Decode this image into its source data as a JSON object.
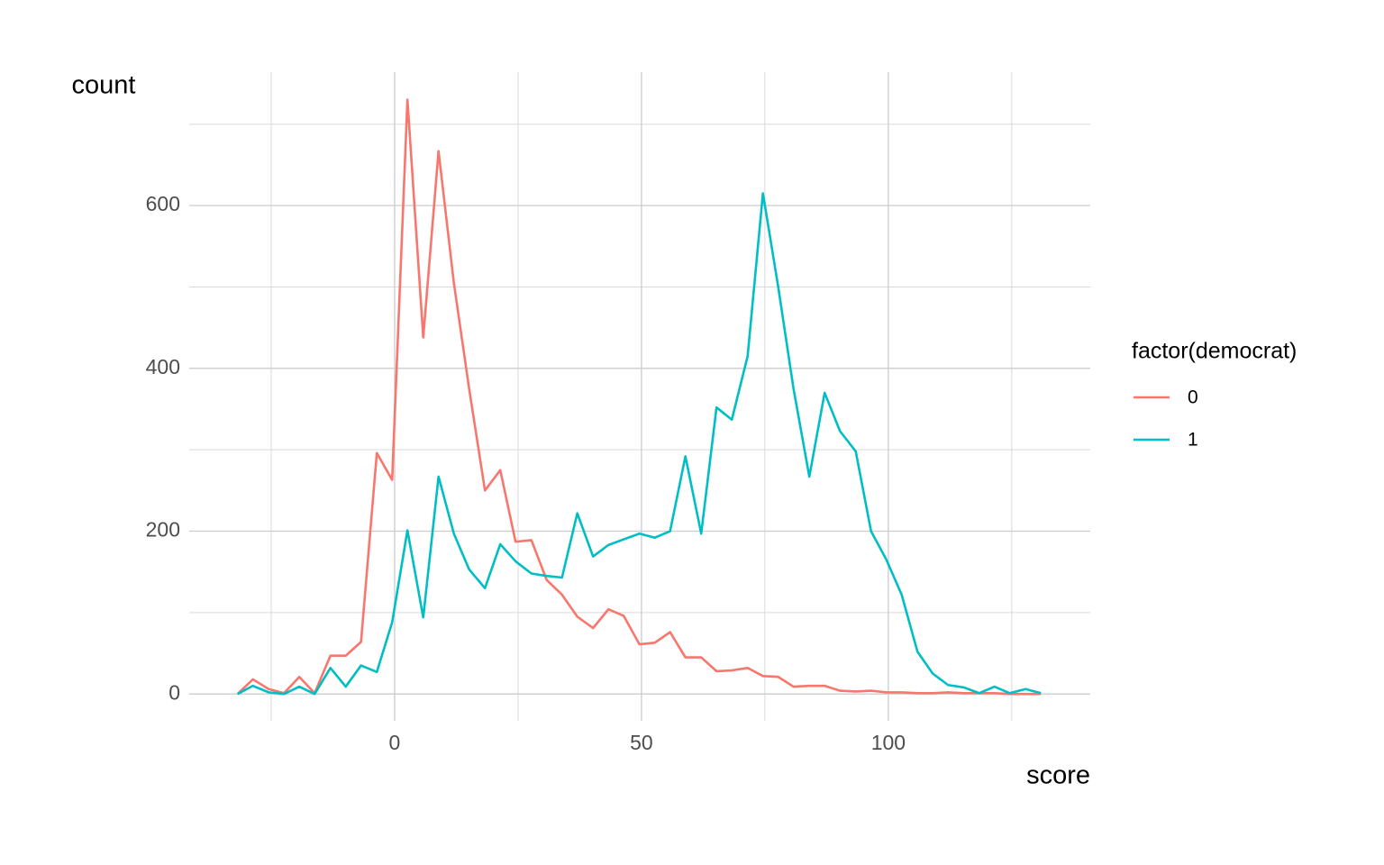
{
  "chart_data": {
    "type": "line",
    "x_label": "score",
    "y_label": "count",
    "legend_title": "factor(democrat)",
    "legend_position": "right",
    "grid": true,
    "xlim": [
      -41.6,
      140.9
    ],
    "ylim": [
      -33,
      764
    ],
    "xticks": [
      0,
      50,
      100
    ],
    "yticks": [
      0,
      200,
      400,
      600
    ],
    "x_minor_grid": [
      -25,
      25,
      75,
      125
    ],
    "y_minor_grid": [
      100,
      300,
      500,
      700
    ],
    "x": [
      -31.8,
      -28.7,
      -25.5,
      -22.4,
      -19.3,
      -16.2,
      -13.0,
      -9.9,
      -6.8,
      -3.6,
      -0.5,
      2.6,
      5.8,
      8.9,
      12.0,
      15.1,
      18.3,
      21.4,
      24.5,
      27.7,
      30.8,
      33.9,
      37.0,
      40.2,
      43.3,
      46.4,
      49.6,
      52.7,
      55.8,
      58.9,
      62.1,
      65.2,
      68.3,
      71.5,
      74.6,
      77.7,
      80.8,
      84.0,
      87.1,
      90.2,
      93.4,
      96.5,
      99.6,
      102.7,
      105.9,
      109.0,
      112.1,
      115.3,
      118.4,
      121.5,
      124.6,
      127.8,
      130.9
    ],
    "series": [
      {
        "name": "0",
        "color": "#F8766D",
        "values": [
          0,
          18,
          6,
          1,
          21,
          1,
          47,
          47,
          64,
          296,
          263,
          730,
          438,
          667,
          505,
          375,
          250,
          275,
          187,
          189,
          140,
          122,
          95,
          81,
          104,
          96,
          61,
          63,
          76,
          45,
          45,
          28,
          29,
          32,
          22,
          21,
          9,
          10,
          10,
          4,
          3,
          4,
          2,
          2,
          1,
          1,
          2,
          1,
          1,
          1,
          0,
          0,
          0
        ]
      },
      {
        "name": "1",
        "color": "#00BFC4",
        "values": [
          0,
          10,
          2,
          0,
          9,
          0,
          32,
          9,
          35,
          27,
          88,
          201,
          94,
          267,
          197,
          153,
          130,
          184,
          163,
          148,
          145,
          143,
          222,
          169,
          183,
          190,
          197,
          192,
          200,
          292,
          197,
          352,
          337,
          415,
          615,
          500,
          375,
          267,
          370,
          323,
          298,
          200,
          165,
          122,
          52,
          25,
          11,
          8,
          1,
          9,
          1,
          6,
          1
        ]
      }
    ]
  }
}
